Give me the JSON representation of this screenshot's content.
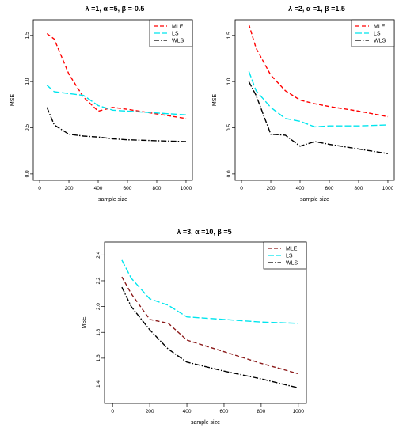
{
  "chart_data": [
    {
      "type": "line",
      "title": "λ =1, α =5, β =-0.5",
      "xlabel": "sample size",
      "ylabel": "MSE",
      "xlim": [
        0,
        1000
      ],
      "ylim": [
        0.0,
        1.6
      ],
      "xticks": [
        "0",
        "200",
        "400",
        "600",
        "800",
        "1000"
      ],
      "yticks": [
        "0.0",
        "0.5",
        "1.0",
        "1.5"
      ],
      "grid": false,
      "legend": "top-right",
      "series": [
        {
          "name": "MLE",
          "color": "#ff0000",
          "x": [
            50,
            100,
            200,
            300,
            400,
            500,
            600,
            800,
            1000
          ],
          "y": [
            1.52,
            1.46,
            1.08,
            0.83,
            0.68,
            0.72,
            0.7,
            0.65,
            0.6
          ]
        },
        {
          "name": "LS",
          "color": "#00e5ee",
          "x": [
            50,
            100,
            200,
            300,
            400,
            500,
            600,
            800,
            1000
          ],
          "y": [
            0.96,
            0.89,
            0.87,
            0.85,
            0.74,
            0.69,
            0.68,
            0.66,
            0.64
          ]
        },
        {
          "name": "WLS",
          "color": "#000000",
          "x": [
            50,
            100,
            200,
            300,
            400,
            500,
            600,
            800,
            1000
          ],
          "y": [
            0.72,
            0.53,
            0.43,
            0.41,
            0.4,
            0.38,
            0.37,
            0.36,
            0.35
          ]
        }
      ]
    },
    {
      "type": "line",
      "title": "λ =2, α =1, β =1.5",
      "xlabel": "sample size",
      "ylabel": "MSE",
      "xlim": [
        0,
        1000
      ],
      "ylim": [
        0.0,
        1.6
      ],
      "xticks": [
        "0",
        "200",
        "400",
        "600",
        "800",
        "1000"
      ],
      "yticks": [
        "0.0",
        "0.5",
        "1.0",
        "1.5"
      ],
      "grid": false,
      "legend": "top-right",
      "series": [
        {
          "name": "MLE",
          "color": "#ff0000",
          "x": [
            50,
            100,
            200,
            300,
            400,
            500,
            600,
            800,
            1000
          ],
          "y": [
            1.62,
            1.36,
            1.07,
            0.9,
            0.8,
            0.76,
            0.73,
            0.68,
            0.62
          ]
        },
        {
          "name": "LS",
          "color": "#00e5ee",
          "x": [
            50,
            100,
            200,
            300,
            400,
            500,
            600,
            800,
            1000
          ],
          "y": [
            1.11,
            0.9,
            0.72,
            0.6,
            0.57,
            0.51,
            0.52,
            0.52,
            0.53
          ]
        },
        {
          "name": "WLS",
          "color": "#000000",
          "x": [
            50,
            100,
            200,
            300,
            400,
            500,
            600,
            800,
            1000
          ],
          "y": [
            1.0,
            0.85,
            0.43,
            0.42,
            0.3,
            0.35,
            0.32,
            0.27,
            0.22
          ]
        }
      ]
    },
    {
      "type": "line",
      "title": "λ =3, α =10, β =5",
      "xlabel": "sample size",
      "ylabel": "MSE",
      "xlim": [
        0,
        1000
      ],
      "ylim": [
        1.3,
        2.45
      ],
      "xticks": [
        "0",
        "200",
        "400",
        "600",
        "800",
        "1000"
      ],
      "yticks": [
        "1.4",
        "1.6",
        "1.8",
        "2.0",
        "2.2",
        "2.4"
      ],
      "grid": false,
      "legend": "top-right",
      "series": [
        {
          "name": "MLE",
          "color": "#8b1a1a",
          "x": [
            50,
            100,
            200,
            300,
            400,
            600,
            800,
            1000
          ],
          "y": [
            2.23,
            2.1,
            1.9,
            1.87,
            1.74,
            1.65,
            1.56,
            1.48
          ]
        },
        {
          "name": "LS",
          "color": "#00e5ee",
          "x": [
            50,
            100,
            200,
            300,
            400,
            600,
            800,
            1000
          ],
          "y": [
            2.36,
            2.22,
            2.06,
            2.01,
            1.92,
            1.9,
            1.88,
            1.87
          ]
        },
        {
          "name": "WLS",
          "color": "#000000",
          "x": [
            50,
            100,
            200,
            300,
            400,
            600,
            800,
            1000
          ],
          "y": [
            2.15,
            2.0,
            1.82,
            1.67,
            1.57,
            1.5,
            1.44,
            1.37
          ]
        }
      ]
    }
  ]
}
